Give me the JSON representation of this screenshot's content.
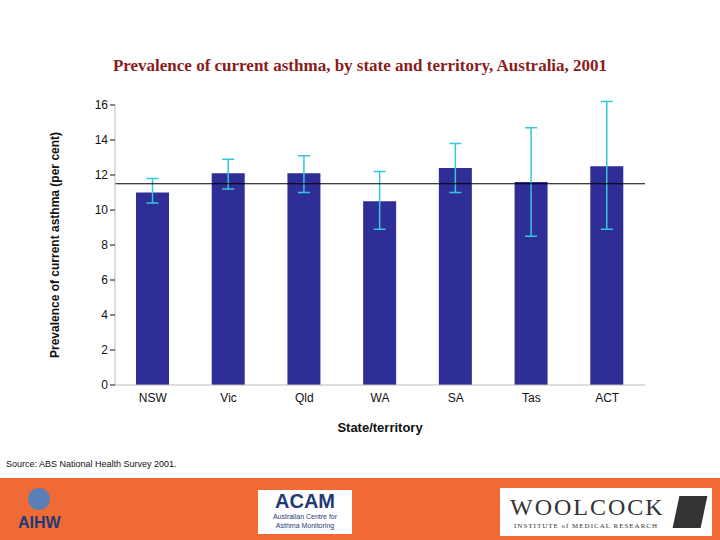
{
  "chart_data": {
    "type": "bar",
    "title": "Prevalence of current asthma, by state and territory, Australia, 2001",
    "x_label": "State/territory",
    "y_label": "Prevalence of current asthma (per cent)",
    "categories": [
      "NSW",
      "Vic",
      "Qld",
      "WA",
      "SA",
      "Tas",
      "ACT"
    ],
    "values": [
      11.0,
      12.1,
      12.1,
      10.5,
      12.4,
      11.6,
      12.5
    ],
    "error_low": [
      10.4,
      11.2,
      11.0,
      8.9,
      11.0,
      8.5,
      8.9
    ],
    "error_high": [
      11.8,
      12.9,
      13.1,
      12.2,
      13.8,
      14.7,
      16.2
    ],
    "reference_line": 11.5,
    "color": "#2e2e96",
    "ylim": [
      0,
      16
    ],
    "yticks": [
      0,
      2,
      4,
      6,
      8,
      10,
      12,
      14,
      16
    ],
    "grid": false
  },
  "footer": {
    "source": "Source: ABS National Health Survey 2001.",
    "aihw": "AIHW",
    "acam": "ACAM",
    "acam_subtitle": "Australian Centre for Asthma Monitoring",
    "woolcock": "WOOLCOCK",
    "woolcock_subtitle": "INSTITUTE of MEDICAL RESEARCH"
  }
}
